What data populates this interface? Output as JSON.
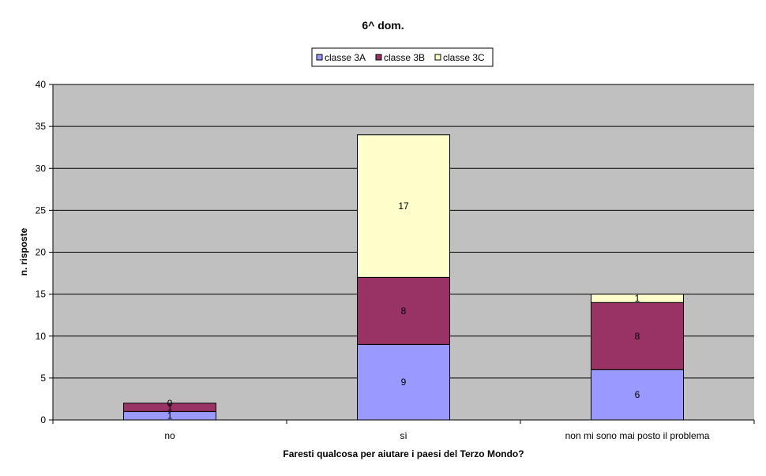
{
  "chart_data": {
    "type": "bar",
    "stacked": true,
    "title": "6^ dom.",
    "xlabel": "Faresti qualcosa per aiutare i paesi del Terzo Mondo?",
    "ylabel": "n. risposte",
    "ylim": [
      0,
      40
    ],
    "yticks": [
      0,
      5,
      10,
      15,
      20,
      25,
      30,
      35,
      40
    ],
    "categories": [
      "no",
      "sì",
      "non mi sono mai posto il problema"
    ],
    "series": [
      {
        "name": "classe 3A",
        "color": "#9999ff",
        "values": [
          1,
          9,
          6
        ]
      },
      {
        "name": "classe 3B",
        "color": "#993366",
        "values": [
          1,
          8,
          8
        ]
      },
      {
        "name": "classe 3C",
        "color": "#ffffcc",
        "values": [
          0,
          17,
          1
        ]
      }
    ],
    "data_labels": [
      [
        "1",
        "9",
        "6"
      ],
      [
        "1",
        "8",
        "8"
      ],
      [
        "0",
        "17",
        "1"
      ]
    ],
    "legend_position": "top",
    "grid": true,
    "plot_background": "#c0c0c0"
  }
}
